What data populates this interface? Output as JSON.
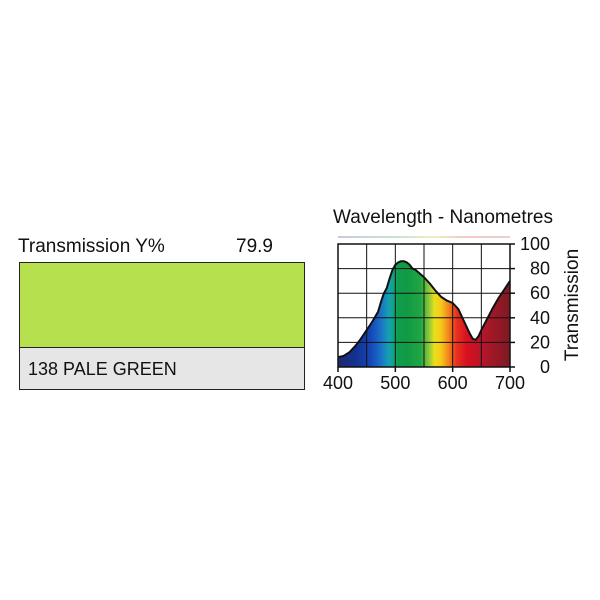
{
  "filter": {
    "transmission_label": "Transmission Y%",
    "transmission_value": "79.9",
    "name": "138 PALE GREEN",
    "swatch_color": "#b7e04e",
    "name_box_color": "#e6e6e6"
  },
  "chart_data": {
    "type": "area",
    "title": "Wavelength - Nanometres",
    "xlabel": "",
    "ylabel": "Transmission",
    "xlim": [
      400,
      700
    ],
    "ylim": [
      0,
      100
    ],
    "x_ticks": [
      400,
      500,
      600,
      700
    ],
    "y_ticks": [
      0,
      20,
      40,
      60,
      80,
      100
    ],
    "grid": true,
    "series": [
      {
        "x": [
          400,
          410,
          420,
          430,
          440,
          450,
          460,
          470,
          475,
          480,
          485,
          490,
          495,
          500,
          505,
          510,
          515,
          520,
          525,
          530,
          535,
          540,
          550,
          560,
          570,
          580,
          590,
          600,
          610,
          620,
          630,
          635,
          640,
          645,
          650,
          660,
          670,
          680,
          690,
          700
        ],
        "y": [
          8,
          9,
          12,
          17,
          23,
          30,
          37,
          45,
          53,
          60,
          64,
          72,
          79,
          83,
          85,
          86,
          86,
          85,
          83,
          80,
          79,
          77,
          73,
          68,
          62,
          57,
          54,
          52,
          47,
          37,
          27,
          23,
          22,
          25,
          30,
          39,
          48,
          56,
          63,
          70
        ]
      }
    ]
  }
}
